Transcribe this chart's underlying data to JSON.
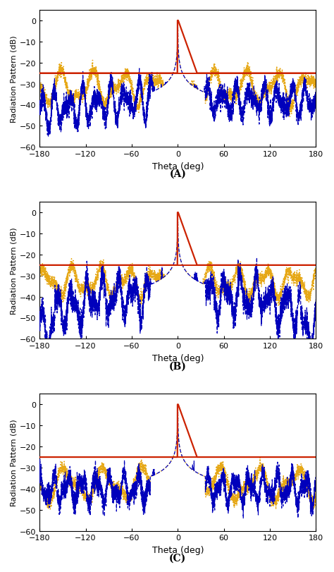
{
  "subplot_labels": [
    "(A)",
    "(B)",
    "(C)"
  ],
  "xlabel": "Theta (deg)",
  "ylabel": "Radiation Pattern (dB)",
  "xlim": [
    -180,
    180
  ],
  "ylim": [
    -60,
    5
  ],
  "yticks": [
    0,
    -10,
    -20,
    -30,
    -40,
    -50,
    -60
  ],
  "xticks": [
    -180,
    -120,
    -60,
    0,
    60,
    120,
    180
  ],
  "red_line_y": -25,
  "colors": {
    "red": "#CC2200",
    "blue": "#0000BB",
    "orange": "#E6A817"
  },
  "background": "#FFFFFF",
  "figsize": [
    4.74,
    8.12
  ],
  "dpi": 100
}
